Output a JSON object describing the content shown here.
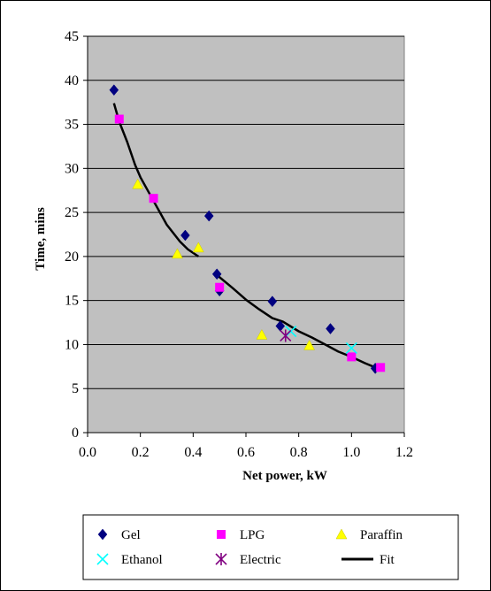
{
  "colors": {
    "plot_background": "#c0c0c0",
    "gridline": "#000000",
    "gel": "#000080",
    "lpg": "#ff00ff",
    "paraffin": "#ffff00",
    "ethanol": "#00ffff",
    "electric": "#800080",
    "fit": "#000000"
  },
  "chart_data": {
    "type": "scatter",
    "title": "",
    "xlabel": "Net power, kW",
    "ylabel": "Time, mins",
    "xlim": [
      0.0,
      1.2
    ],
    "ylim": [
      0,
      45
    ],
    "x_ticks": [
      "0.0",
      "0.2",
      "0.4",
      "0.6",
      "0.8",
      "1.0",
      "1.2"
    ],
    "y_ticks": [
      "0",
      "5",
      "10",
      "15",
      "20",
      "25",
      "30",
      "35",
      "40",
      "45"
    ],
    "grid": "horizontal",
    "legend_position": "bottom",
    "series": [
      {
        "name": "Gel",
        "marker": "diamond",
        "points": [
          [
            0.1,
            38.9
          ],
          [
            0.37,
            22.4
          ],
          [
            0.46,
            24.6
          ],
          [
            0.49,
            18.0
          ],
          [
            0.5,
            16.1
          ],
          [
            0.7,
            14.9
          ],
          [
            0.73,
            12.1
          ],
          [
            0.92,
            11.8
          ],
          [
            1.09,
            7.3
          ]
        ]
      },
      {
        "name": "LPG",
        "marker": "square",
        "points": [
          [
            0.12,
            35.6
          ],
          [
            0.25,
            26.6
          ],
          [
            0.5,
            16.5
          ],
          [
            1.0,
            8.6
          ],
          [
            1.11,
            7.4
          ]
        ]
      },
      {
        "name": "Paraffin",
        "marker": "triangle",
        "points": [
          [
            0.19,
            28.2
          ],
          [
            0.34,
            20.3
          ],
          [
            0.42,
            21.0
          ],
          [
            0.66,
            11.1
          ],
          [
            0.84,
            9.9
          ]
        ]
      },
      {
        "name": "Ethanol",
        "marker": "x",
        "points": [
          [
            0.77,
            11.5
          ],
          [
            1.0,
            9.6
          ]
        ]
      },
      {
        "name": "Electric",
        "marker": "star",
        "points": [
          [
            0.75,
            11.0
          ]
        ]
      },
      {
        "name": "Fit",
        "marker": "line",
        "segments": [
          [
            [
              0.1,
              37.4
            ],
            [
              0.12,
              35.3
            ],
            [
              0.15,
              33.0
            ],
            [
              0.18,
              30.4
            ],
            [
              0.2,
              29.0
            ],
            [
              0.25,
              26.3
            ],
            [
              0.3,
              23.6
            ],
            [
              0.35,
              21.7
            ],
            [
              0.38,
              20.8
            ],
            [
              0.42,
              20.0
            ]
          ],
          [
            [
              0.49,
              17.9
            ],
            [
              0.55,
              16.4
            ],
            [
              0.6,
              15.1
            ],
            [
              0.65,
              14.0
            ],
            [
              0.7,
              13.0
            ],
            [
              0.74,
              12.6
            ],
            [
              0.8,
              11.5
            ],
            [
              0.85,
              10.8
            ],
            [
              0.9,
              10.0
            ],
            [
              0.95,
              9.2
            ],
            [
              1.0,
              8.6
            ],
            [
              1.05,
              7.9
            ],
            [
              1.09,
              7.4
            ]
          ]
        ]
      }
    ]
  }
}
